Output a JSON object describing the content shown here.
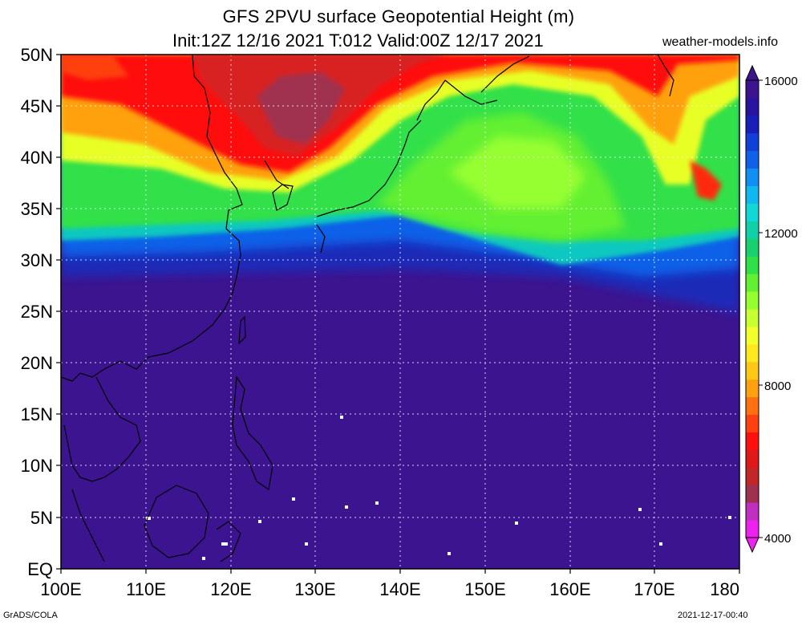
{
  "title": {
    "line1": "GFS 2PVU surface Geopotential Height (m)",
    "line2": "Init:12Z 12/16 2021 T:012 Valid:00Z 12/17 2021",
    "site": "weather-models.info"
  },
  "footer": {
    "left": "GrADS/COLA",
    "right": "2021-12-17-00:40"
  },
  "map": {
    "lat_labels": [
      "50N",
      "45N",
      "40N",
      "35N",
      "30N",
      "25N",
      "20N",
      "15N",
      "10N",
      "5N",
      "EQ"
    ],
    "lon_labels": [
      "100E",
      "110E",
      "120E",
      "130E",
      "140E",
      "150E",
      "160E",
      "170E",
      "180"
    ],
    "lat_range": [
      0,
      50
    ],
    "lon_range": [
      100,
      180
    ],
    "grid": true
  },
  "colorbar": {
    "labels": [
      "16000",
      "12000",
      "8000",
      "4000"
    ],
    "range": [
      4000,
      16000
    ],
    "colors": [
      "#ee22ee",
      "#c030c0",
      "#a03050",
      "#c02828",
      "#e01818",
      "#ff1010",
      "#ff4010",
      "#ff7010",
      "#ffa010",
      "#ffc814",
      "#ffe81e",
      "#f2ff2a",
      "#c8ff30",
      "#96ff30",
      "#64f032",
      "#30e048",
      "#18d070",
      "#10d0a8",
      "#10d8d8",
      "#10b8f0",
      "#1090f0",
      "#1060e8",
      "#1040d8",
      "#1820b8",
      "#2814a0",
      "#3c1490"
    ]
  }
}
